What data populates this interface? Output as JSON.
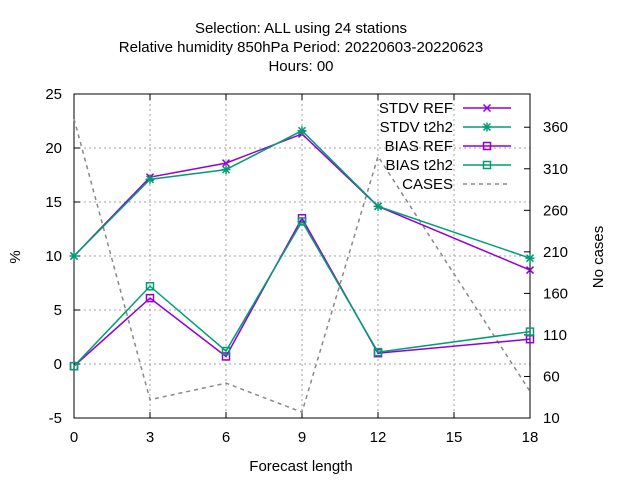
{
  "chart_data": {
    "type": "line",
    "title_lines": [
      "Selection: ALL using    24 stations",
      "Relative humidity 850hPa   Period: 20220603-20220623",
      "Hours:  00"
    ],
    "xlabel": "Forecast length",
    "ylabel": "%",
    "y2label": "No cases",
    "xlim": [
      0,
      18
    ],
    "ylim": [
      -5,
      25
    ],
    "y2lim": [
      10,
      400
    ],
    "xticks": [
      0,
      3,
      6,
      9,
      12,
      15,
      18
    ],
    "yticks": [
      -5,
      0,
      5,
      10,
      15,
      20,
      25
    ],
    "y2ticks": [
      10,
      60,
      110,
      160,
      210,
      260,
      310,
      360
    ],
    "grid": true,
    "legend_position": "top-right",
    "series": [
      {
        "name": "STDV REF",
        "axis": "y",
        "color": "#9400d3",
        "marker": "x",
        "dash": false,
        "x": [
          0,
          3,
          6,
          9,
          12,
          18
        ],
        "y": [
          10.0,
          17.3,
          18.6,
          21.3,
          14.6,
          8.7
        ]
      },
      {
        "name": "STDV t2h2",
        "axis": "y",
        "color": "#009e73",
        "marker": "star",
        "dash": false,
        "x": [
          0,
          3,
          6,
          9,
          12,
          18
        ],
        "y": [
          10.0,
          17.1,
          18.0,
          21.6,
          14.6,
          9.8
        ]
      },
      {
        "name": "BIAS REF",
        "axis": "y",
        "color": "#9400d3",
        "marker": "square",
        "dash": false,
        "x": [
          0,
          3,
          6,
          9,
          12,
          18
        ],
        "y": [
          -0.2,
          6.1,
          0.7,
          13.5,
          1.0,
          2.3
        ]
      },
      {
        "name": "BIAS t2h2",
        "axis": "y",
        "color": "#009e73",
        "marker": "square",
        "dash": false,
        "x": [
          0,
          3,
          6,
          9,
          12,
          18
        ],
        "y": [
          -0.2,
          7.2,
          1.2,
          13.2,
          1.1,
          3.0
        ]
      },
      {
        "name": "CASES",
        "axis": "y2",
        "color": "#888888",
        "marker": "none",
        "dash": true,
        "x": [
          0,
          3,
          6,
          9,
          12,
          18
        ],
        "y": [
          370,
          32,
          52,
          17,
          325,
          42
        ]
      }
    ]
  }
}
